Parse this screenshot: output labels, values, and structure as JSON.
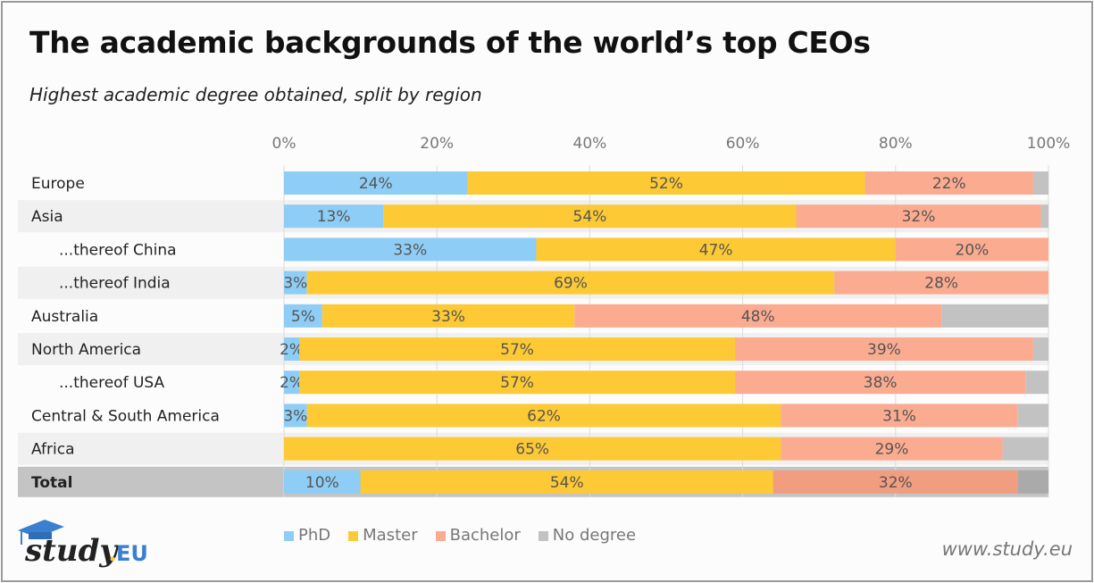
{
  "title": "The academic backgrounds of the world’s top CEOs",
  "subtitle": "Highest academic degree obtained, split by region",
  "footer": {
    "website": "www.study.eu",
    "logo_text": "study.EU"
  },
  "chart_data": {
    "type": "bar",
    "orientation": "horizontal",
    "stacked": "percent",
    "xlim": [
      0,
      100
    ],
    "x_ticks": [
      "0%",
      "20%",
      "40%",
      "60%",
      "80%",
      "100%"
    ],
    "grid": true,
    "legend_position": "bottom",
    "categories": [
      "Europe",
      "Asia",
      "...thereof China",
      "...thereof India",
      "Australia",
      "North America",
      "...thereof USA",
      "Central & South America",
      "Africa",
      "Total"
    ],
    "indented": [
      false,
      false,
      true,
      true,
      false,
      false,
      true,
      false,
      false,
      false
    ],
    "series": [
      {
        "name": "PhD",
        "color": "#8ecdf5",
        "values": [
          24,
          13,
          33,
          3,
          5,
          2,
          2,
          3,
          0,
          10
        ]
      },
      {
        "name": "Master",
        "color": "#fdc934",
        "values": [
          52,
          54,
          47,
          69,
          33,
          57,
          57,
          62,
          65,
          54
        ]
      },
      {
        "name": "Bachelor",
        "color": "#fbab8f",
        "values": [
          22,
          32,
          20,
          28,
          48,
          39,
          38,
          31,
          29,
          32
        ]
      },
      {
        "name": "No degree",
        "color": "#c2c2c2",
        "values": [
          2,
          1,
          0,
          0,
          14,
          2,
          3,
          4,
          6,
          4
        ]
      }
    ],
    "data_labels": [
      [
        "24%",
        "52%",
        "22%",
        ""
      ],
      [
        "13%",
        "54%",
        "32%",
        ""
      ],
      [
        "33%",
        "47%",
        "20%",
        ""
      ],
      [
        "3%",
        "69%",
        "28%",
        ""
      ],
      [
        "5%",
        "33%",
        "48%",
        ""
      ],
      [
        "2%",
        "57%",
        "39%",
        ""
      ],
      [
        "2%",
        "57%",
        "38%",
        ""
      ],
      [
        "3%",
        "62%",
        "31%",
        ""
      ],
      [
        "",
        "65%",
        "29%",
        ""
      ],
      [
        "10%",
        "54%",
        "32%",
        ""
      ]
    ]
  }
}
